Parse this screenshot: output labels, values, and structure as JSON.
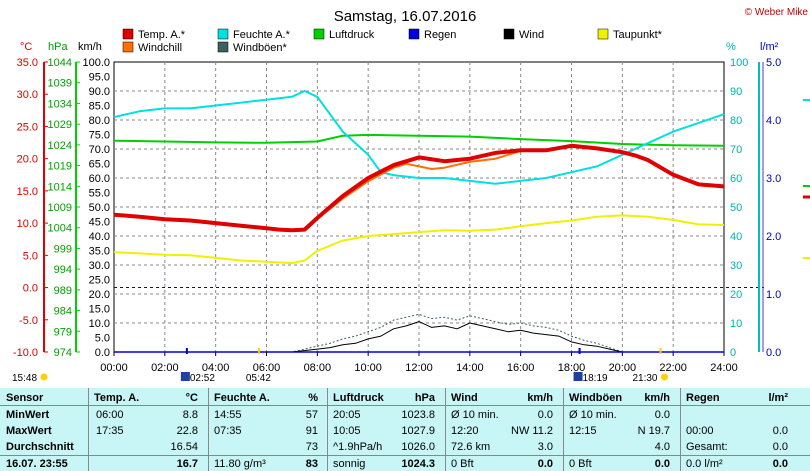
{
  "header": {
    "title": "Samstag, 16.07.2016",
    "copyright": "© Weber Mike"
  },
  "legend": [
    {
      "label": "Temp. A.*",
      "color": "#e00000"
    },
    {
      "label": "Feuchte A.*",
      "color": "#00e0e0"
    },
    {
      "label": "Luftdruck",
      "color": "#00d000"
    },
    {
      "label": "Regen",
      "color": "#0000e0"
    },
    {
      "label": "Wind",
      "color": "#000000"
    },
    {
      "label": "Taupunkt*",
      "color": "#f0f000"
    },
    {
      "label": "Windchill",
      "color": "#ff7000"
    },
    {
      "label": "Windböen*",
      "color": "#406060"
    }
  ],
  "axes": {
    "temp": {
      "unit": "°C",
      "ticks": [
        "35.0",
        "30.0",
        "25.0",
        "20.0",
        "15.0",
        "10.0",
        "5.0",
        "0.0",
        "-5.0",
        "-10.0"
      ]
    },
    "pressure": {
      "unit": "hPa",
      "ticks": [
        "1044",
        "1039",
        "1034",
        "1029",
        "1024",
        "1019",
        "1014",
        "1009",
        "1004",
        "999",
        "994",
        "989",
        "984",
        "979",
        "974"
      ]
    },
    "wind": {
      "unit": "km/h",
      "ticks": [
        "100.0",
        "95.0",
        "90.0",
        "85.0",
        "80.0",
        "75.0",
        "70.0",
        "65.0",
        "60.0",
        "55.0",
        "50.0",
        "45.0",
        "40.0",
        "35.0",
        "30.0",
        "25.0",
        "20.0",
        "15.0",
        "10.0",
        "5.0",
        "0.0"
      ]
    },
    "humidity": {
      "unit": "%",
      "ticks": [
        "100",
        "90",
        "80",
        "70",
        "60",
        "50",
        "40",
        "30",
        "20",
        "10",
        "0"
      ]
    },
    "rain": {
      "unit": "l/m²",
      "ticks": [
        "5.0",
        "4.0",
        "3.0",
        "2.0",
        "1.0",
        "0.0"
      ]
    },
    "time": {
      "ticks": [
        "00:00",
        "02:00",
        "04:00",
        "06:00",
        "08:00",
        "10:00",
        "12:00",
        "14:00",
        "16:00",
        "18:00",
        "20:00",
        "22:00",
        "24:00"
      ]
    }
  },
  "sun": {
    "sunrise": "05:42",
    "sunset": "21:30",
    "moonrise": "02:52",
    "moonset": "18:19",
    "left_time": "15:48"
  },
  "chart_data": {
    "type": "line",
    "x_unit": "hours",
    "series": [
      {
        "name": "Temp. A.*",
        "axis": "temp",
        "color": "#e00000",
        "x": [
          0,
          1,
          2,
          3,
          4,
          5,
          6,
          6.5,
          7,
          7.5,
          8,
          8.5,
          9,
          10,
          11,
          12,
          13,
          14,
          15,
          16,
          17,
          18,
          19,
          20,
          20.5,
          21,
          22,
          23,
          24
        ],
        "y": [
          11.3,
          11.0,
          10.6,
          10.4,
          10.0,
          9.6,
          9.2,
          9.0,
          8.9,
          9.0,
          10.8,
          12.5,
          14.2,
          17.0,
          19.0,
          20.2,
          19.6,
          20.0,
          20.9,
          21.3,
          21.3,
          22.0,
          21.6,
          21.0,
          20.5,
          19.8,
          17.5,
          16.0,
          15.7
        ]
      },
      {
        "name": "Windchill",
        "axis": "temp",
        "color": "#ff7000",
        "x": [
          0,
          1,
          2,
          3,
          4,
          5,
          6,
          6.5,
          7,
          7.5,
          8,
          8.5,
          9,
          10,
          11,
          11.5,
          12,
          12.5,
          13,
          14,
          15,
          16,
          17,
          18,
          19,
          20,
          20.5,
          21,
          22,
          23,
          24
        ],
        "y": [
          11.3,
          11.0,
          10.6,
          10.4,
          10.0,
          9.6,
          9.2,
          9.0,
          8.9,
          9.0,
          10.8,
          12.2,
          13.8,
          16.5,
          18.6,
          19.2,
          18.8,
          18.4,
          18.6,
          19.5,
          20.0,
          21.2,
          21.3,
          22.0,
          21.6,
          21.0,
          20.5,
          19.8,
          17.5,
          16.0,
          15.7
        ]
      },
      {
        "name": "Feuchte A.*",
        "axis": "humidity",
        "color": "#00e0e0",
        "x": [
          0,
          1,
          2,
          3,
          4,
          5,
          6,
          7,
          7.5,
          8,
          9,
          10,
          10.5,
          11,
          12,
          13,
          14,
          15,
          16,
          17,
          18,
          19,
          20,
          21,
          22,
          23,
          24
        ],
        "y": [
          81,
          83,
          84,
          84,
          85,
          86,
          87,
          88,
          90,
          88,
          76,
          68,
          62,
          61,
          60,
          60,
          59,
          58,
          59,
          60,
          62,
          64,
          68,
          72,
          76,
          79,
          82
        ]
      },
      {
        "name": "Luftdruck",
        "axis": "pressure",
        "color": "#00d000",
        "x": [
          0,
          2,
          4,
          6,
          8,
          9,
          10,
          12,
          14,
          16,
          18,
          20,
          22,
          24
        ],
        "y": [
          1025.0,
          1024.8,
          1024.6,
          1024.5,
          1024.8,
          1026.2,
          1026.4,
          1026.2,
          1026.0,
          1025.4,
          1024.9,
          1024.2,
          1023.9,
          1023.8
        ]
      },
      {
        "name": "Taupunkt*",
        "axis": "temp",
        "color": "#f0f000",
        "x": [
          0,
          1,
          2,
          3,
          4,
          5,
          6,
          7,
          7.5,
          8,
          9,
          10,
          11,
          12,
          13,
          14,
          15,
          16,
          17,
          18,
          19,
          20,
          21,
          22,
          23,
          24
        ],
        "y": [
          5.5,
          5.3,
          5.1,
          5.0,
          4.6,
          4.2,
          4.0,
          3.8,
          4.2,
          5.7,
          7.3,
          8.0,
          8.3,
          8.6,
          8.9,
          8.8,
          9.0,
          9.5,
          10.0,
          10.4,
          11.0,
          11.2,
          11.0,
          10.5,
          9.8,
          9.7
        ]
      },
      {
        "name": "Wind",
        "axis": "wind",
        "color": "#000000",
        "x": [
          0,
          7,
          8,
          8.5,
          9,
          9.5,
          10,
          10.5,
          11,
          11.5,
          12,
          12.5,
          13,
          13.5,
          14,
          14.5,
          15,
          15.5,
          16,
          16.5,
          17,
          17.5,
          18,
          18.5,
          19,
          19.5,
          20,
          24
        ],
        "y": [
          0,
          0,
          1.0,
          1.5,
          2.5,
          3.0,
          4.5,
          5.5,
          8.0,
          9.0,
          10.5,
          8.5,
          9.0,
          8.0,
          10.0,
          9.0,
          8.0,
          7.0,
          7.5,
          6.5,
          6.0,
          5.5,
          3.5,
          2.5,
          2.0,
          1.0,
          0,
          0
        ]
      },
      {
        "name": "Windböen*",
        "axis": "wind",
        "color": "#406060",
        "x": [
          0,
          7,
          8,
          8.5,
          9,
          9.5,
          10,
          10.5,
          11,
          11.5,
          12,
          12.5,
          13,
          13.5,
          14,
          14.5,
          15,
          15.5,
          16,
          16.5,
          17,
          17.5,
          18,
          18.5,
          19,
          19.5,
          20,
          24
        ],
        "y": [
          0,
          0,
          2.0,
          3.0,
          4.5,
          5.5,
          7.0,
          8.5,
          11.0,
          12.0,
          13.0,
          11.5,
          12.0,
          11.0,
          12.5,
          11.5,
          10.5,
          9.5,
          10.0,
          9.0,
          8.5,
          7.5,
          5.5,
          4.0,
          3.0,
          1.5,
          0,
          0
        ]
      },
      {
        "name": "Regen",
        "axis": "rain",
        "color": "#0000e0",
        "x": [
          0,
          24
        ],
        "y": [
          0,
          0
        ]
      }
    ],
    "reference_line": {
      "axis": "temp",
      "value": 0.0,
      "style": "dashed",
      "color": "#0000c0"
    },
    "grid": true
  },
  "table": {
    "headers": [
      {
        "label": "Sensor"
      },
      {
        "label": "Temp. A.",
        "unit": "°C"
      },
      {
        "label": "Feuchte A.",
        "unit": "%"
      },
      {
        "label": "Luftdruck",
        "unit": "hPa"
      },
      {
        "label": "Wind",
        "unit": "km/h"
      },
      {
        "label": "Windböen",
        "unit": "km/h"
      },
      {
        "label": "Regen",
        "unit": "l/m²"
      }
    ],
    "rows": [
      {
        "label": "MinWert",
        "cells": [
          "06:00",
          "8.8",
          "14:55",
          "57",
          "20:05",
          "1023.8",
          "Ø 10 min.",
          "0.0",
          "Ø 10 min.",
          "0.0",
          "",
          ""
        ]
      },
      {
        "label": "MaxWert",
        "cells": [
          "17:35",
          "22.8",
          "07:35",
          "91",
          "10:05",
          "1027.9",
          "12:20",
          "NW 11.2",
          "12:15",
          "N 19.7",
          "00:00",
          "0.0"
        ]
      },
      {
        "label": "Durchschnitt",
        "cells": [
          "",
          "16.54",
          "",
          "73",
          "^1.9hPa/h",
          "1026.0",
          "72.6 km",
          "3.0",
          "",
          "4.0",
          "Gesamt:",
          "0.0"
        ]
      },
      {
        "label": "16.07. 23:55",
        "cells": [
          "",
          "16.7",
          "11.80 g/m³",
          "83",
          "sonnig",
          "1024.3",
          "0 Bft",
          "0.0",
          "0 Bft",
          "0.0",
          "0.0 l/m²",
          "0.0"
        ]
      }
    ]
  }
}
